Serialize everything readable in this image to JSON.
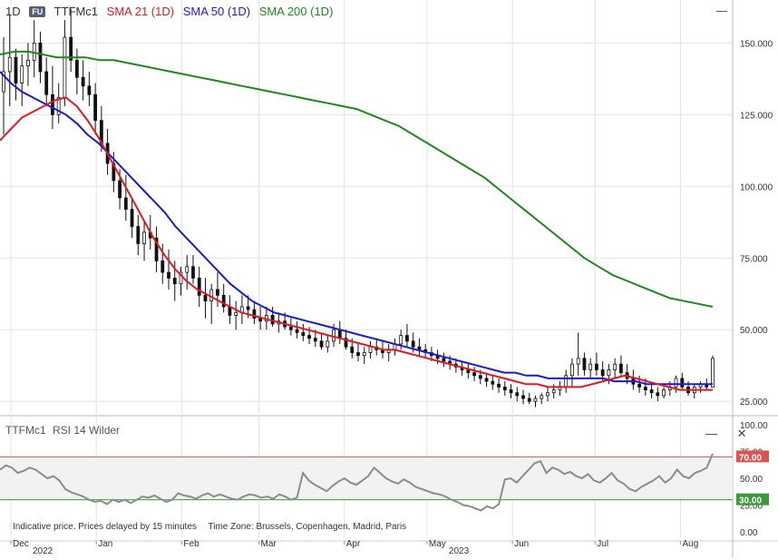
{
  "header": {
    "interval": "1D",
    "badge": "FU",
    "symbol": "TTFMc1",
    "sma21": "SMA 21 (1D)",
    "sma50": "SMA 50 (1D)",
    "sma200": "SMA 200 (1D)"
  },
  "rsi_panel": {
    "symbol": "TTFMc1",
    "indicator": "RSI 14 Wilder",
    "close_icon": "close-icon",
    "minimize_icon": "minimize-icon"
  },
  "notice": {
    "delay": "Indicative price. Prices delayed by 15 minutes",
    "timezone": "Time Zone: Brussels, Copenhagen, Madrid, Paris"
  },
  "colors": {
    "sma21": "#e8161d",
    "sma50": "#1a1ad8",
    "sma200": "#1b8a1b",
    "rsi": "#8c8c8c",
    "upper_band": "#d9534f",
    "lower_band": "#3a9a3a"
  },
  "chart_data": [
    {
      "type": "candlestick",
      "x_labels": [
        {
          "label": "Dec",
          "year": "2022",
          "date": "2022-12-01"
        },
        {
          "label": "Jan",
          "date": "2023-01-01"
        },
        {
          "label": "Feb",
          "date": "2023-02-01"
        },
        {
          "label": "Mar",
          "date": "2023-03-01"
        },
        {
          "label": "Apr",
          "date": "2023-04-01"
        },
        {
          "label": "May",
          "year": "2023",
          "date": "2023-05-01"
        },
        {
          "label": "Jun",
          "date": "2023-06-01"
        },
        {
          "label": "Jul",
          "date": "2023-07-01"
        },
        {
          "label": "Aug",
          "date": "2023-08-01"
        }
      ],
      "x_range": [
        "2022-12-01",
        "2023-08-14"
      ],
      "y_ticks": [
        25,
        50,
        75,
        100,
        125,
        150
      ],
      "y_tick_labels": [
        "25.000",
        "50.000",
        "75.000",
        "100.000",
        "125.000",
        "150.000"
      ],
      "ylim": [
        20,
        165
      ],
      "grid": true,
      "candles": [
        [
          133,
          152,
          118,
          140
        ],
        [
          140,
          160,
          128,
          145
        ],
        [
          145,
          148,
          130,
          136
        ],
        [
          136,
          146,
          128,
          142
        ],
        [
          142,
          150,
          135,
          144
        ],
        [
          144,
          158,
          138,
          150
        ],
        [
          150,
          154,
          136,
          140
        ],
        [
          140,
          145,
          128,
          132
        ],
        [
          132,
          142,
          120,
          125
        ],
        [
          125,
          136,
          122,
          131
        ],
        [
          131,
          158,
          128,
          152
        ],
        [
          152,
          162,
          140,
          144
        ],
        [
          144,
          148,
          132,
          138
        ],
        [
          138,
          144,
          130,
          135
        ],
        [
          135,
          140,
          128,
          132
        ],
        [
          132,
          136,
          118,
          123
        ],
        [
          123,
          128,
          112,
          115
        ],
        [
          115,
          120,
          104,
          108
        ],
        [
          108,
          112,
          98,
          102
        ],
        [
          102,
          106,
          92,
          96
        ],
        [
          96,
          104,
          88,
          92
        ],
        [
          92,
          96,
          82,
          86
        ],
        [
          86,
          90,
          76,
          80
        ],
        [
          80,
          88,
          74,
          84
        ],
        [
          84,
          90,
          78,
          82
        ],
        [
          82,
          86,
          70,
          74
        ],
        [
          74,
          80,
          66,
          70
        ],
        [
          70,
          78,
          64,
          68
        ],
        [
          68,
          74,
          60,
          66
        ],
        [
          66,
          72,
          62,
          70
        ],
        [
          70,
          76,
          64,
          72
        ],
        [
          72,
          76,
          66,
          68
        ],
        [
          68,
          72,
          58,
          62
        ],
        [
          62,
          68,
          54,
          60
        ],
        [
          60,
          66,
          52,
          64
        ],
        [
          64,
          70,
          58,
          62
        ],
        [
          62,
          66,
          56,
          58
        ],
        [
          58,
          62,
          52,
          55
        ],
        [
          55,
          60,
          50,
          56
        ],
        [
          56,
          62,
          52,
          58
        ],
        [
          58,
          62,
          54,
          57
        ],
        [
          57,
          60,
          52,
          54
        ],
        [
          54,
          58,
          50,
          53
        ],
        [
          53,
          58,
          50,
          55
        ],
        [
          55,
          58,
          51,
          52
        ],
        [
          52,
          56,
          49,
          53
        ],
        [
          53,
          56,
          50,
          51
        ],
        [
          51,
          54,
          48,
          50
        ],
        [
          50,
          53,
          47,
          49
        ],
        [
          49,
          52,
          46,
          48
        ],
        [
          48,
          51,
          45,
          47
        ],
        [
          47,
          50,
          44,
          46
        ],
        [
          46,
          49,
          43,
          44
        ],
        [
          44,
          48,
          42,
          46
        ],
        [
          46,
          52,
          44,
          50
        ],
        [
          50,
          53,
          45,
          47
        ],
        [
          47,
          50,
          43,
          44
        ],
        [
          44,
          47,
          40,
          42
        ],
        [
          42,
          45,
          39,
          41
        ],
        [
          41,
          44,
          38,
          42
        ],
        [
          42,
          46,
          40,
          44
        ],
        [
          44,
          47,
          41,
          43
        ],
        [
          43,
          46,
          40,
          42
        ],
        [
          42,
          45,
          39,
          43
        ],
        [
          43,
          47,
          41,
          45
        ],
        [
          45,
          50,
          43,
          48
        ],
        [
          48,
          52,
          44,
          46
        ],
        [
          46,
          49,
          42,
          44
        ],
        [
          44,
          47,
          41,
          43
        ],
        [
          43,
          45,
          40,
          42
        ],
        [
          42,
          44,
          39,
          41
        ],
        [
          41,
          43,
          38,
          40
        ],
        [
          40,
          42,
          37,
          39
        ],
        [
          39,
          41,
          36,
          38
        ],
        [
          38,
          40,
          35,
          37
        ],
        [
          37,
          39,
          34,
          36
        ],
        [
          36,
          38,
          33,
          35
        ],
        [
          35,
          37,
          32,
          34
        ],
        [
          34,
          36,
          31,
          33
        ],
        [
          33,
          35,
          30,
          32
        ],
        [
          32,
          34,
          29,
          31
        ],
        [
          31,
          33,
          28,
          30
        ],
        [
          30,
          32,
          27,
          29
        ],
        [
          29,
          31,
          26,
          28
        ],
        [
          28,
          30,
          25,
          27
        ],
        [
          27,
          29,
          24,
          26
        ],
        [
          26,
          28,
          24,
          25
        ],
        [
          25,
          27,
          23,
          26
        ],
        [
          26,
          28,
          24,
          27
        ],
        [
          27,
          30,
          25,
          28
        ],
        [
          28,
          31,
          26,
          29
        ],
        [
          29,
          32,
          27,
          30
        ],
        [
          30,
          36,
          28,
          34
        ],
        [
          34,
          40,
          30,
          38
        ],
        [
          38,
          49,
          34,
          40
        ],
        [
          40,
          42,
          34,
          36
        ],
        [
          36,
          40,
          33,
          38
        ],
        [
          38,
          42,
          34,
          36
        ],
        [
          36,
          39,
          32,
          34
        ],
        [
          34,
          38,
          31,
          36
        ],
        [
          36,
          40,
          33,
          38
        ],
        [
          38,
          41,
          34,
          35
        ],
        [
          35,
          38,
          31,
          33
        ],
        [
          33,
          36,
          29,
          31
        ],
        [
          31,
          34,
          28,
          30
        ],
        [
          30,
          33,
          27,
          29
        ],
        [
          29,
          31,
          26,
          28
        ],
        [
          28,
          30,
          25,
          27
        ],
        [
          27,
          30,
          26,
          29
        ],
        [
          29,
          32,
          27,
          30
        ],
        [
          30,
          34,
          28,
          33
        ],
        [
          33,
          35,
          29,
          30
        ],
        [
          30,
          32,
          27,
          28
        ],
        [
          28,
          31,
          26,
          30
        ],
        [
          30,
          32,
          28,
          31
        ],
        [
          31,
          33,
          29,
          30
        ],
        [
          30,
          41,
          30,
          40
        ]
      ],
      "sma21": [
        116,
        120,
        124,
        126,
        128,
        130,
        131,
        128,
        123,
        117,
        110,
        103,
        96,
        89,
        82,
        76,
        71,
        67,
        64,
        62,
        60,
        58,
        56,
        55,
        54,
        53,
        52,
        51,
        50,
        49,
        48,
        47,
        46,
        45,
        44,
        43,
        43,
        42,
        41,
        40,
        39,
        38,
        37,
        36,
        35,
        34,
        33,
        32,
        31,
        31,
        30,
        30,
        30,
        30,
        31,
        32,
        33,
        34,
        33,
        32,
        31,
        30,
        29,
        29,
        29,
        29
      ],
      "sma50": [
        140,
        136,
        133,
        131,
        129,
        127,
        125,
        122,
        118,
        115,
        111,
        107,
        103,
        99,
        95,
        91,
        86,
        82,
        78,
        74,
        70,
        66,
        63,
        60,
        58,
        56,
        55,
        54,
        53,
        52,
        51,
        50,
        49,
        48,
        47,
        46,
        45,
        44,
        43,
        42,
        41,
        40,
        39,
        38,
        37,
        36,
        35,
        35,
        34,
        34,
        33,
        33,
        33,
        33,
        33,
        33,
        32,
        32,
        32,
        31,
        31,
        31,
        31,
        31,
        31,
        31
      ],
      "sma200": [
        146,
        147,
        147,
        146,
        145,
        145,
        145,
        144,
        144,
        143,
        142,
        141,
        140,
        139,
        138,
        137,
        136,
        135,
        134,
        133,
        132,
        131,
        130,
        129,
        128,
        127,
        125,
        123,
        121,
        118,
        115,
        112,
        109,
        106,
        103,
        99,
        95,
        91,
        87,
        83,
        79,
        75,
        72,
        69,
        67,
        65,
        63,
        61,
        60,
        59,
        58
      ]
    },
    {
      "type": "line",
      "title": "RSI 14 Wilder",
      "y_ticks": [
        0,
        25,
        50,
        75,
        100
      ],
      "y_tick_labels": [
        "0.00",
        "25.00",
        "50.00",
        "75.00",
        "100.00"
      ],
      "ylim": [
        -5,
        105
      ],
      "bands": [
        {
          "value": 70,
          "label": "70.00"
        },
        {
          "value": 30,
          "label": "30.00"
        }
      ],
      "values": [
        58,
        62,
        60,
        55,
        57,
        60,
        58,
        54,
        50,
        52,
        48,
        40,
        37,
        35,
        33,
        30,
        28,
        29,
        26,
        30,
        28,
        30,
        27,
        30,
        33,
        32,
        34,
        31,
        28,
        30,
        36,
        34,
        33,
        31,
        34,
        36,
        33,
        35,
        33,
        31,
        30,
        33,
        35,
        34,
        32,
        33,
        31,
        35,
        33,
        30,
        32,
        55,
        48,
        44,
        41,
        38,
        43,
        47,
        50,
        46,
        44,
        48,
        52,
        60,
        55,
        50,
        47,
        45,
        49,
        46,
        42,
        40,
        38,
        36,
        35,
        33,
        30,
        28,
        25,
        24,
        22,
        20,
        24,
        22,
        26,
        49,
        50,
        46,
        52,
        58,
        64,
        66,
        55,
        60,
        58,
        54,
        56,
        52,
        50,
        54,
        48,
        46,
        50,
        55,
        48,
        45,
        40,
        38,
        42,
        45,
        48,
        52,
        46,
        50,
        58,
        52,
        50,
        55,
        57,
        60,
        73
      ]
    }
  ]
}
